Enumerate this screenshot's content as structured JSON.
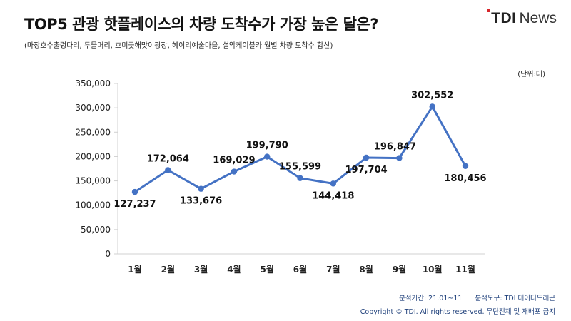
{
  "header": {
    "title": "TOP5 관광 핫플레이스의 차량 도착수가 가장 높은 달은?",
    "subtitle": "(마장호수출렁다리, 두물머리, 호미곶해맞이광장, 헤이리예술마을, 설악케이블카 월별 차량 도착수 합산)",
    "unit": "(단위:대)"
  },
  "logo": {
    "part1": "TDI",
    "part2": "News",
    "accent_color": "#d7262b"
  },
  "footer": {
    "period": "분석기간: 21.01~11",
    "tool": "분석도구: TDI 데이터드래곤",
    "copyright": "Copyright © TDI. All rights reserved. 무단전재 및 재배포 금지"
  },
  "colors": {
    "line": "#4472c4",
    "text_footer": "#1e3f7a"
  },
  "chart_data": {
    "type": "line",
    "categories": [
      "1월",
      "2월",
      "3월",
      "4월",
      "5월",
      "6월",
      "7월",
      "8월",
      "9월",
      "10월",
      "11월"
    ],
    "values": [
      127237,
      172064,
      133676,
      169029,
      199790,
      155599,
      144418,
      197704,
      196847,
      302552,
      180456
    ],
    "data_labels": [
      "127,237",
      "172,064",
      "133,676",
      "169,029",
      "199,790",
      "155,599",
      "144,418",
      "197,704",
      "196,847",
      "302,552",
      "180,456"
    ],
    "y_ticks": [
      "0",
      "50,000",
      "100,000",
      "150,000",
      "200,000",
      "250,000",
      "300,000",
      "350,000"
    ],
    "ylim": [
      0,
      350000
    ],
    "grid": false,
    "legend": "none"
  }
}
